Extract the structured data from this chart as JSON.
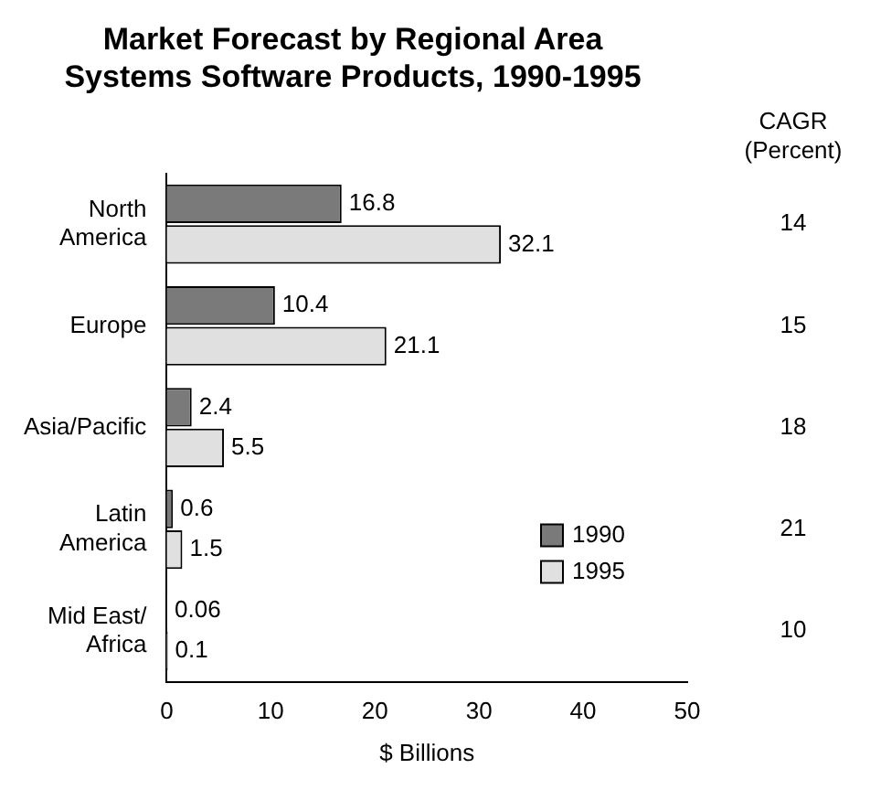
{
  "chart_data": {
    "type": "bar",
    "orientation": "horizontal",
    "title": "Market Forecast by Regional Area",
    "subtitle": "Systems Software Products, 1990-1995",
    "categories": [
      "North America",
      "Europe",
      "Asia/Pacific",
      "Latin America",
      "Mid East/ Africa"
    ],
    "series": [
      {
        "name": "1990",
        "color": "#7a7a7a",
        "values": [
          16.8,
          10.4,
          2.4,
          0.6,
          0.06
        ]
      },
      {
        "name": "1995",
        "color": "#e0e0e0",
        "values": [
          32.1,
          21.1,
          5.5,
          1.5,
          0.1
        ]
      }
    ],
    "xlim": [
      0,
      50
    ],
    "xticks": [
      0,
      10,
      20,
      30,
      40,
      50
    ],
    "xlabel": "$ Billions",
    "data_labels": true,
    "grid": false,
    "legend": "bottom right",
    "annotations": [
      "CAGR (Percent)",
      "14",
      "15",
      "18",
      "21",
      "10"
    ]
  }
}
